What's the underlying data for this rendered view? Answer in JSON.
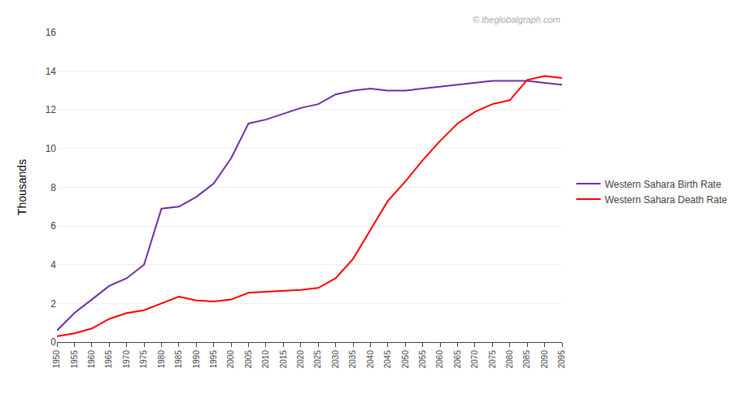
{
  "chart_data": {
    "type": "line",
    "x": [
      1950,
      1955,
      1960,
      1965,
      1970,
      1975,
      1980,
      1985,
      1990,
      1995,
      2000,
      2005,
      2010,
      2015,
      2020,
      2025,
      2030,
      2035,
      2040,
      2045,
      2050,
      2055,
      2060,
      2065,
      2070,
      2075,
      2080,
      2085,
      2090,
      2095
    ],
    "xlim": [
      1950,
      2095
    ],
    "xticks": [
      1950,
      1955,
      1960,
      1965,
      1970,
      1975,
      1980,
      1985,
      1990,
      1995,
      2000,
      2005,
      2010,
      2015,
      2020,
      2025,
      2030,
      2035,
      2040,
      2045,
      2050,
      2055,
      2060,
      2065,
      2070,
      2075,
      2080,
      2085,
      2090,
      2095
    ],
    "ylabel": "Thousands",
    "ylim": [
      0,
      16
    ],
    "yticks": [
      0,
      2,
      4,
      6,
      8,
      10,
      12,
      14,
      16
    ],
    "series": [
      {
        "name": "Western Sahara Birth Rate",
        "color": "#7030A0",
        "values": [
          0.6,
          1.5,
          2.2,
          2.9,
          3.3,
          4.0,
          6.9,
          7.0,
          7.5,
          8.2,
          9.5,
          11.3,
          11.5,
          11.8,
          12.1,
          12.3,
          12.8,
          13.0,
          13.1,
          13.0,
          13.0,
          13.1,
          13.2,
          13.3,
          13.4,
          13.5,
          13.5,
          13.5,
          13.4,
          13.3
        ]
      },
      {
        "name": "Western Sahara Death Rate",
        "color": "#FF0000",
        "values": [
          0.3,
          0.45,
          0.7,
          1.2,
          1.5,
          1.65,
          2.0,
          2.35,
          2.15,
          2.1,
          2.2,
          2.55,
          2.6,
          2.65,
          2.7,
          2.8,
          3.3,
          4.3,
          5.8,
          7.3,
          8.3,
          9.4,
          10.4,
          11.3,
          11.9,
          12.3,
          12.5,
          13.55,
          13.75,
          13.65
        ]
      }
    ],
    "annotations": [
      "© theglobalgraph.com"
    ],
    "grid": "y",
    "legend": "right"
  }
}
